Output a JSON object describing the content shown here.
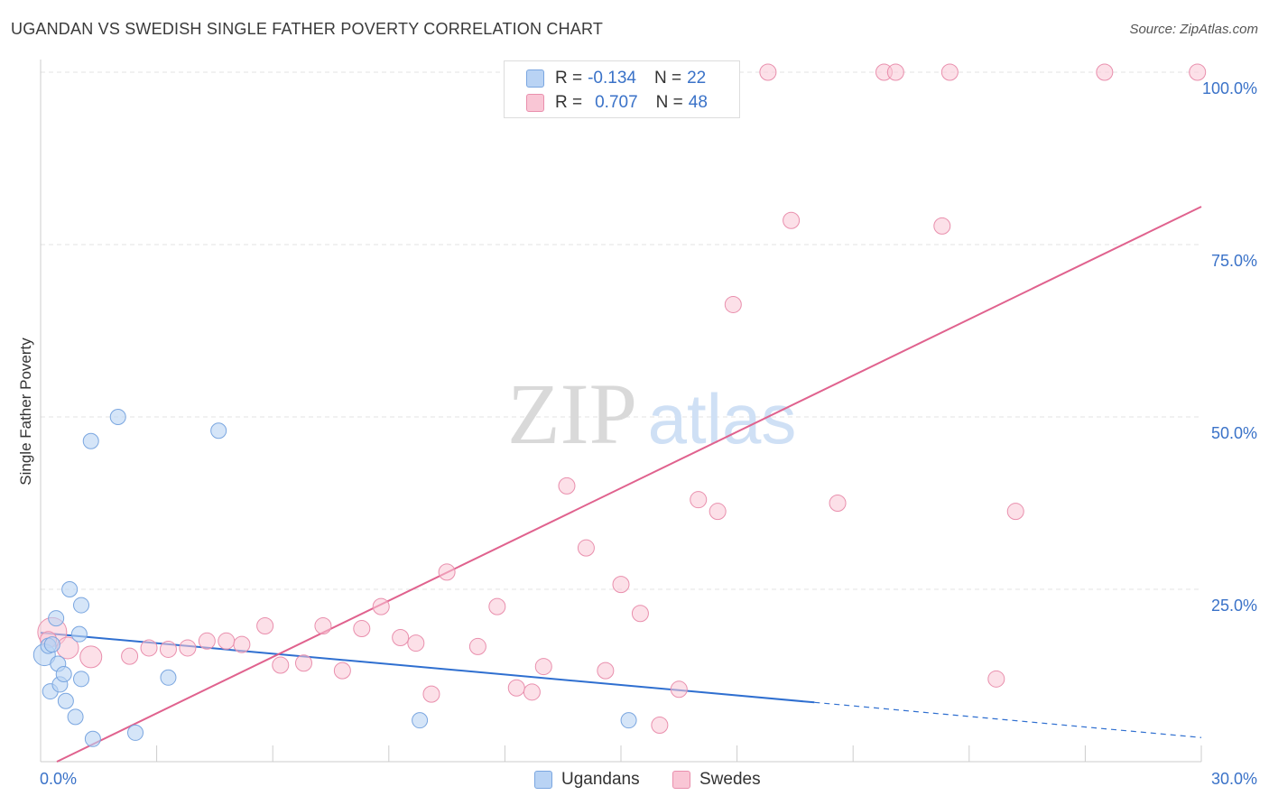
{
  "title": "UGANDAN VS SWEDISH SINGLE FATHER POVERTY CORRELATION CHART",
  "source": "Source: ZipAtlas.com",
  "watermark": {
    "zip": "ZIP",
    "atlas": "atlas"
  },
  "legend": {
    "rows": [
      {
        "r_label": "R =",
        "r_value": "-0.134",
        "n_label": "N =",
        "n_value": "22"
      },
      {
        "r_label": "R =",
        "r_value": "0.707",
        "n_label": "N =",
        "n_value": "48"
      }
    ]
  },
  "bottom_legend": {
    "ugandans": "Ugandans",
    "swedes": "Swedes"
  },
  "colors": {
    "ugandan_fill": "#b9d3f4",
    "ugandan_stroke": "#7aa6e0",
    "ugandan_line": "#2f6fd0",
    "swede_fill": "#f9c6d5",
    "swede_stroke": "#e98fad",
    "swede_line": "#e0628e",
    "tick_text": "#3a72c8",
    "grid": "#e3e3e3"
  },
  "chart_data": {
    "type": "scatter",
    "title": "UGANDAN VS SWEDISH SINGLE FATHER POVERTY CORRELATION CHART",
    "xlabel": "",
    "ylabel": "Single Father Poverty",
    "xlim": [
      0,
      30
    ],
    "ylim": [
      0,
      100
    ],
    "x_tick_labels": [
      "0.0%",
      "30.0%"
    ],
    "y_ticks": [
      25,
      50,
      75,
      100
    ],
    "y_tick_labels": [
      "25.0%",
      "50.0%",
      "75.0%",
      "100.0%"
    ],
    "grid": true,
    "series": [
      {
        "name": "Ugandans",
        "points": [
          [
            0.1,
            15.5
          ],
          [
            0.2,
            16.8
          ],
          [
            0.25,
            10.2
          ],
          [
            0.3,
            17.0
          ],
          [
            0.4,
            20.8
          ],
          [
            0.45,
            14.2
          ],
          [
            0.5,
            11.2
          ],
          [
            0.6,
            12.7
          ],
          [
            0.65,
            8.8
          ],
          [
            0.75,
            25.0
          ],
          [
            0.9,
            6.5
          ],
          [
            1.0,
            18.5
          ],
          [
            1.05,
            22.7
          ],
          [
            1.05,
            12.0
          ],
          [
            1.3,
            46.5
          ],
          [
            1.35,
            3.3
          ],
          [
            2.0,
            50.0
          ],
          [
            2.45,
            4.2
          ],
          [
            3.3,
            12.2
          ],
          [
            4.6,
            48.0
          ],
          [
            9.8,
            6.0
          ],
          [
            15.2,
            6.0
          ]
        ],
        "trend": {
          "x0": 0,
          "y0": 18.7,
          "x1": 20.0,
          "y1": 8.6,
          "dash_x1": 30,
          "dash_y1": 3.5
        }
      },
      {
        "name": "Swedes",
        "points": [
          [
            0.3,
            18.8
          ],
          [
            0.7,
            16.5
          ],
          [
            1.3,
            15.2
          ],
          [
            2.3,
            15.3
          ],
          [
            2.8,
            16.5
          ],
          [
            3.3,
            16.3
          ],
          [
            3.8,
            16.5
          ],
          [
            4.3,
            17.5
          ],
          [
            4.8,
            17.5
          ],
          [
            5.2,
            17.0
          ],
          [
            5.8,
            19.7
          ],
          [
            6.2,
            14.0
          ],
          [
            6.8,
            14.3
          ],
          [
            7.3,
            19.7
          ],
          [
            7.8,
            13.2
          ],
          [
            8.3,
            19.3
          ],
          [
            8.8,
            22.5
          ],
          [
            9.3,
            18.0
          ],
          [
            9.7,
            17.2
          ],
          [
            10.1,
            9.8
          ],
          [
            10.5,
            27.5
          ],
          [
            11.3,
            16.7
          ],
          [
            11.8,
            22.5
          ],
          [
            12.3,
            10.7
          ],
          [
            12.7,
            10.1
          ],
          [
            13.0,
            13.8
          ],
          [
            13.6,
            40.0
          ],
          [
            14.1,
            31.0
          ],
          [
            14.6,
            13.2
          ],
          [
            15.0,
            25.7
          ],
          [
            15.5,
            21.5
          ],
          [
            16.0,
            5.3
          ],
          [
            16.5,
            10.5
          ],
          [
            17.0,
            38.0
          ],
          [
            17.5,
            36.3
          ],
          [
            17.9,
            66.3
          ],
          [
            18.8,
            100.0
          ],
          [
            19.4,
            78.5
          ],
          [
            20.6,
            37.5
          ],
          [
            21.8,
            100.0
          ],
          [
            22.1,
            100.0
          ],
          [
            23.3,
            77.7
          ],
          [
            23.5,
            100.0
          ],
          [
            24.7,
            12.0
          ],
          [
            25.2,
            36.3
          ],
          [
            27.5,
            100.0
          ],
          [
            29.9,
            100.0
          ],
          [
            0.2,
            17.7
          ]
        ],
        "trend": {
          "x0": 0,
          "y0": 0.0,
          "x1": 30,
          "y1": 80.5
        }
      }
    ]
  }
}
